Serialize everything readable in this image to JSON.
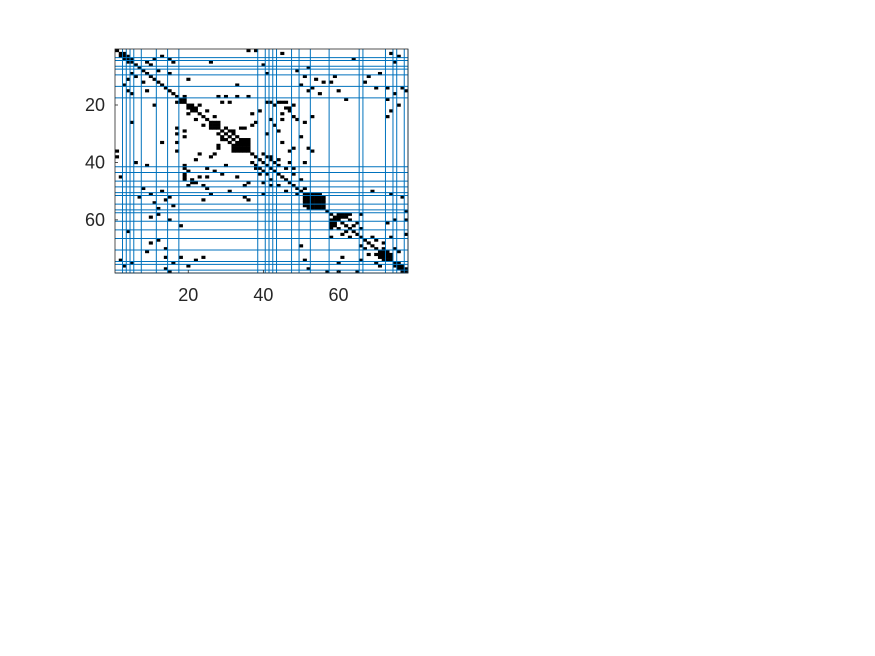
{
  "chart_data": {
    "type": "heatmap",
    "subtype": "binary-matrix-spy-plot",
    "title": "",
    "xlabel": "",
    "ylabel": "",
    "xlim": [
      0.5,
      78.5
    ],
    "ylim": [
      0.5,
      78.5
    ],
    "y_reversed": true,
    "grid": false,
    "colors": {
      "filled": "#000000",
      "empty": "#ffffff",
      "partition_lines": "#0072bd",
      "axis": "#262626"
    },
    "x_ticks": [
      20,
      40,
      60
    ],
    "x_tick_labels": [
      "20",
      "40",
      "60"
    ],
    "y_ticks": [
      20,
      40,
      60
    ],
    "y_tick_labels": [
      "20",
      "40",
      "60"
    ],
    "diagonal_runs": [
      [
        1,
        78
      ]
    ],
    "blocks": [
      {
        "rows": [
          52,
          55
        ],
        "cols": [
          51,
          56
        ]
      },
      {
        "rows": [
          34,
          36
        ],
        "cols": [
          32,
          36
        ]
      },
      {
        "rows": [
          72,
          73
        ],
        "cols": [
          71,
          74
        ]
      },
      {
        "rows": [
          27,
          28
        ],
        "cols": [
          26,
          27
        ]
      },
      {
        "rows": [
          58,
          59
        ],
        "cols": [
          60,
          62
        ]
      }
    ],
    "symmetric_cells": [
      [
        2,
        3
      ],
      [
        3,
        4
      ],
      [
        4,
        5
      ],
      [
        5,
        9
      ],
      [
        6,
        10
      ],
      [
        8,
        12
      ],
      [
        9,
        15
      ],
      [
        11,
        4
      ],
      [
        3,
        13
      ],
      [
        15,
        4
      ],
      [
        16,
        5
      ],
      [
        17,
        19
      ],
      [
        19,
        18
      ],
      [
        20,
        21
      ],
      [
        20,
        23
      ],
      [
        21,
        22
      ],
      [
        22,
        25
      ],
      [
        23,
        20
      ],
      [
        24,
        27
      ],
      [
        19,
        29
      ],
      [
        19,
        31
      ],
      [
        28,
        30
      ],
      [
        29,
        31
      ],
      [
        30,
        32
      ],
      [
        31,
        33
      ],
      [
        32,
        29
      ],
      [
        34,
        28
      ],
      [
        28,
        35
      ],
      [
        28,
        17
      ],
      [
        30,
        17
      ],
      [
        33,
        17
      ],
      [
        17,
        36
      ],
      [
        23,
        37
      ],
      [
        19,
        42
      ],
      [
        19,
        44
      ],
      [
        43,
        20
      ],
      [
        45,
        19
      ],
      [
        46,
        21
      ],
      [
        47,
        22
      ],
      [
        48,
        24
      ],
      [
        45,
        25
      ],
      [
        37,
        40
      ],
      [
        38,
        41
      ],
      [
        39,
        42
      ],
      [
        40,
        43
      ],
      [
        41,
        44
      ],
      [
        42,
        46
      ],
      [
        44,
        48
      ],
      [
        46,
        50
      ],
      [
        44,
        41
      ],
      [
        19,
        41
      ],
      [
        19,
        44
      ],
      [
        19,
        46
      ],
      [
        21,
        47
      ],
      [
        23,
        45
      ],
      [
        49,
        51
      ],
      [
        57,
        57
      ],
      [
        58,
        63
      ],
      [
        60,
        63
      ],
      [
        61,
        65
      ],
      [
        62,
        64
      ],
      [
        63,
        66
      ],
      [
        64,
        62
      ],
      [
        58,
        66
      ],
      [
        66,
        69
      ],
      [
        67,
        70
      ],
      [
        70,
        72
      ],
      [
        74,
        74
      ],
      [
        75,
        76
      ],
      [
        76,
        77
      ],
      [
        77,
        78
      ],
      [
        70,
        75
      ],
      [
        71,
        76
      ],
      [
        65,
        78
      ],
      [
        57,
        78
      ],
      [
        60,
        78
      ],
      [
        10,
        68
      ],
      [
        12,
        67
      ],
      [
        14,
        73
      ],
      [
        2,
        74
      ],
      [
        3,
        76
      ],
      [
        14,
        77
      ],
      [
        5,
        75
      ],
      [
        18,
        73
      ],
      [
        16,
        75
      ],
      [
        12,
        56
      ],
      [
        12,
        58
      ],
      [
        39,
        44
      ],
      [
        40,
        51
      ],
      [
        9,
        41
      ],
      [
        6,
        40
      ],
      [
        1,
        36
      ],
      [
        1,
        38
      ],
      [
        2,
        45
      ],
      [
        5,
        26
      ],
      [
        7,
        52
      ],
      [
        10,
        59
      ],
      [
        14,
        70
      ],
      [
        18,
        62
      ],
      [
        20,
        48
      ],
      [
        24,
        53
      ],
      [
        15,
        60
      ],
      [
        4,
        64
      ],
      [
        11,
        54
      ],
      [
        13,
        33
      ],
      [
        17,
        30
      ],
      [
        22,
        39
      ],
      [
        25,
        42
      ],
      [
        27,
        43
      ],
      [
        29,
        44
      ],
      [
        30,
        41
      ],
      [
        33,
        45
      ],
      [
        35,
        48
      ],
      [
        36,
        47
      ],
      [
        38,
        42
      ],
      [
        40,
        47
      ],
      [
        42,
        48
      ],
      [
        13,
        50
      ],
      [
        10,
        51
      ],
      [
        15,
        52
      ],
      [
        14,
        53
      ],
      [
        16,
        55
      ],
      [
        25,
        49
      ],
      [
        26,
        51
      ],
      [
        31,
        50
      ],
      [
        35,
        52
      ],
      [
        36,
        53
      ],
      [
        26,
        38
      ],
      [
        27,
        37
      ],
      [
        50,
        69
      ],
      [
        51,
        74
      ],
      [
        60,
        75
      ],
      [
        61,
        73
      ],
      [
        66,
        74
      ],
      [
        68,
        72
      ],
      [
        20,
        76
      ],
      [
        22,
        74
      ],
      [
        24,
        73
      ],
      [
        52,
        77
      ],
      [
        8,
        49
      ],
      [
        9,
        71
      ],
      [
        15,
        78
      ],
      [
        11,
        20
      ]
    ],
    "column_partition_lines": [
      2,
      3,
      4,
      5,
      7,
      11,
      14,
      17,
      38,
      40,
      41,
      42,
      43,
      47,
      49,
      52,
      57,
      65,
      66,
      72,
      74,
      75,
      77,
      78
    ],
    "row_partition_lines": [
      3,
      4,
      6,
      7,
      9,
      13,
      17,
      41,
      43,
      46,
      48,
      50,
      51,
      54,
      56,
      57,
      60,
      63,
      66,
      70,
      74,
      75,
      77,
      78
    ]
  }
}
